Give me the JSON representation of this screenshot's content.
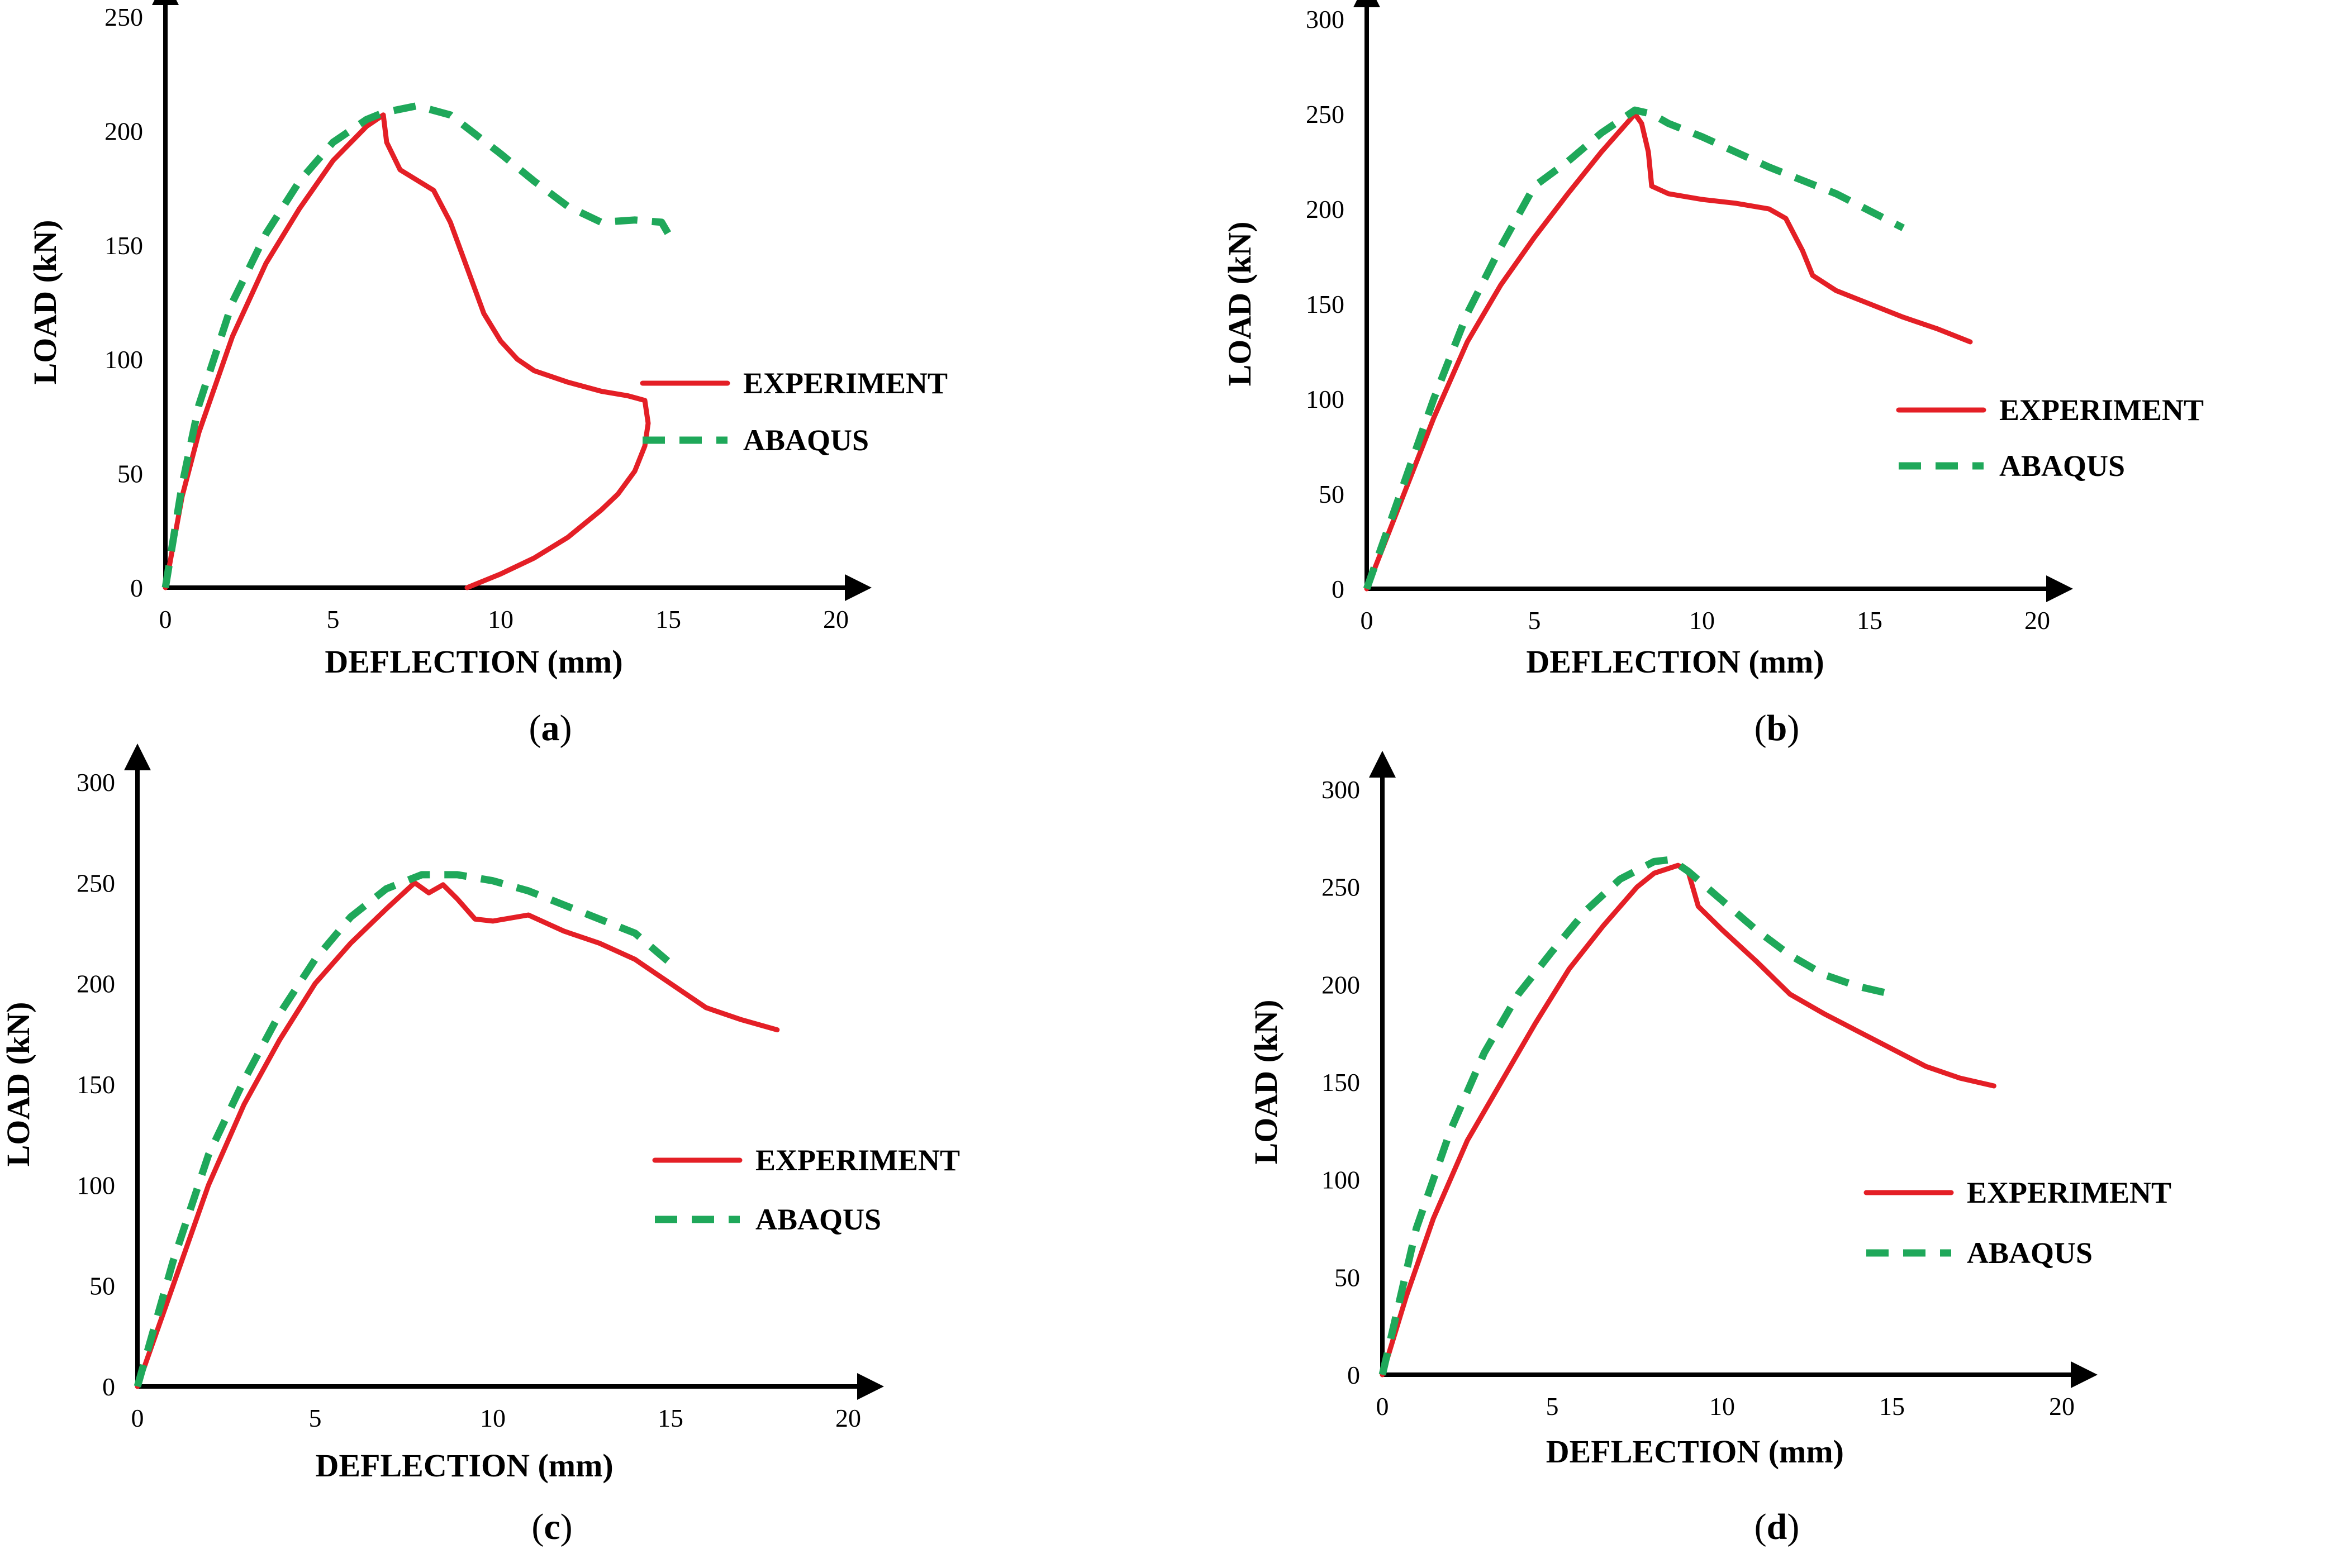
{
  "chart_data": [
    {
      "panel": "a",
      "type": "line",
      "caption_letter": "a",
      "xlabel": "DEFLECTION (mm)",
      "ylabel": "LOAD (kN)",
      "xlim": [
        0,
        20
      ],
      "ylim": [
        0,
        250
      ],
      "xticks": [
        0,
        5,
        10,
        15,
        20
      ],
      "yticks": [
        0,
        50,
        100,
        150,
        200,
        250
      ],
      "legend": [
        "EXPERIMENT",
        "ABAQUS"
      ],
      "legend_position": "right",
      "series": [
        {
          "name": "EXPERIMENT",
          "color": "#e41f26",
          "style": "solid",
          "x": [
            0,
            0.5,
            1,
            2,
            3,
            4,
            5,
            6,
            6.5,
            6.6,
            7,
            8,
            8.5,
            9,
            9.5,
            10,
            10.5,
            11,
            12,
            13,
            13.8,
            14.3,
            14.4,
            14.3,
            14,
            13.5,
            13,
            12,
            11,
            10,
            9
          ],
          "y": [
            0,
            40,
            68,
            110,
            142,
            166,
            187,
            202,
            207,
            195,
            183,
            174,
            160,
            140,
            120,
            108,
            100,
            95,
            90,
            86,
            84,
            82,
            72,
            62,
            51,
            41,
            34,
            22,
            13,
            6,
            0
          ]
        },
        {
          "name": "ABAQUS",
          "color": "#1fa85a",
          "style": "dashed",
          "x": [
            0,
            0.5,
            1,
            2,
            3,
            4,
            5,
            6,
            6.5,
            7.5,
            8.5,
            10,
            11,
            12,
            13,
            14,
            14.8,
            15
          ],
          "y": [
            0,
            45,
            80,
            125,
            155,
            178,
            195,
            205,
            208,
            211,
            207,
            190,
            178,
            167,
            160,
            161,
            160,
            155
          ]
        }
      ]
    },
    {
      "panel": "b",
      "type": "line",
      "caption_letter": "b",
      "xlabel": "DEFLECTION (mm)",
      "ylabel": "LOAD (kN)",
      "xlim": [
        0,
        20
      ],
      "ylim": [
        0,
        300
      ],
      "xticks": [
        0,
        5,
        10,
        15,
        20
      ],
      "yticks": [
        0,
        50,
        100,
        150,
        200,
        250,
        300
      ],
      "legend": [
        "EXPERIMENT",
        "ABAQUS"
      ],
      "legend_position": "right",
      "series": [
        {
          "name": "EXPERIMENT",
          "color": "#e41f26",
          "style": "solid",
          "x": [
            0,
            1,
            2,
            3,
            4,
            5,
            6,
            7,
            8,
            8.2,
            8.4,
            8.5,
            9,
            10,
            11,
            12,
            12.5,
            13,
            13.3,
            14,
            15,
            16,
            17,
            18
          ],
          "y": [
            0,
            45,
            90,
            130,
            160,
            185,
            208,
            230,
            250,
            245,
            230,
            212,
            208,
            205,
            203,
            200,
            195,
            178,
            165,
            157,
            150,
            143,
            137,
            130
          ]
        },
        {
          "name": "ABAQUS",
          "color": "#1fa85a",
          "style": "dashed",
          "x": [
            0,
            1,
            2,
            3,
            4,
            5,
            6,
            7,
            8,
            8.5,
            9,
            10,
            11,
            12,
            13,
            14,
            15,
            16
          ],
          "y": [
            0,
            50,
            100,
            145,
            180,
            212,
            225,
            240,
            252,
            250,
            245,
            238,
            230,
            222,
            215,
            208,
            199,
            190
          ]
        }
      ]
    },
    {
      "panel": "c",
      "type": "line",
      "caption_letter": "c",
      "xlabel": "DEFLECTION (mm)",
      "ylabel": "LOAD (kN)",
      "xlim": [
        0,
        20
      ],
      "ylim": [
        0,
        300
      ],
      "xticks": [
        0,
        5,
        10,
        15,
        20
      ],
      "yticks": [
        0,
        50,
        100,
        150,
        200,
        250,
        300
      ],
      "legend": [
        "EXPERIMENT",
        "ABAQUS"
      ],
      "legend_position": "right",
      "series": [
        {
          "name": "EXPERIMENT",
          "color": "#e41f26",
          "style": "solid",
          "x": [
            0,
            1,
            2,
            3,
            4,
            5,
            6,
            7,
            7.8,
            8.2,
            8.6,
            9,
            9.5,
            10,
            11,
            12,
            13,
            14,
            15,
            16,
            17,
            18
          ],
          "y": [
            0,
            50,
            100,
            140,
            172,
            200,
            220,
            237,
            250,
            245,
            249,
            242,
            232,
            231,
            234,
            226,
            220,
            212,
            200,
            188,
            182,
            177
          ]
        },
        {
          "name": "ABAQUS",
          "color": "#1fa85a",
          "style": "dashed",
          "x": [
            0,
            1,
            2,
            3,
            4,
            5,
            6,
            7,
            8,
            9,
            10,
            11,
            12,
            13,
            14,
            15
          ],
          "y": [
            0,
            62,
            115,
            152,
            185,
            212,
            233,
            247,
            254,
            254,
            251,
            246,
            239,
            232,
            225,
            210
          ]
        }
      ]
    },
    {
      "panel": "d",
      "type": "line",
      "caption_letter": "d",
      "xlabel": "DEFLECTION (mm)",
      "ylabel": "LOAD (kN)",
      "xlim": [
        0,
        20
      ],
      "ylim": [
        0,
        300
      ],
      "xticks": [
        0,
        5,
        10,
        15,
        20
      ],
      "yticks": [
        0,
        50,
        100,
        150,
        200,
        250,
        300
      ],
      "legend": [
        "EXPERIMENT",
        "ABAQUS"
      ],
      "legend_position": "right",
      "series": [
        {
          "name": "EXPERIMENT",
          "color": "#e41f26",
          "style": "solid",
          "x": [
            0,
            0.7,
            1.5,
            2.5,
            3.5,
            4.5,
            5.5,
            6.5,
            7.5,
            8,
            8.7,
            9,
            9.3,
            10,
            11,
            12,
            13,
            14,
            15,
            16,
            17,
            18
          ],
          "y": [
            0,
            40,
            80,
            120,
            150,
            180,
            208,
            230,
            250,
            257,
            261,
            258,
            240,
            228,
            212,
            195,
            185,
            176,
            167,
            158,
            152,
            148
          ]
        },
        {
          "name": "ABAQUS",
          "color": "#1fa85a",
          "style": "dashed",
          "x": [
            0,
            1,
            2,
            3,
            4,
            5,
            6,
            7,
            8,
            8.5,
            9,
            10,
            11,
            12,
            13,
            14,
            15
          ],
          "y": [
            0,
            75,
            125,
            165,
            195,
            217,
            238,
            254,
            263,
            264,
            258,
            243,
            228,
            215,
            205,
            199,
            195
          ]
        }
      ]
    }
  ]
}
